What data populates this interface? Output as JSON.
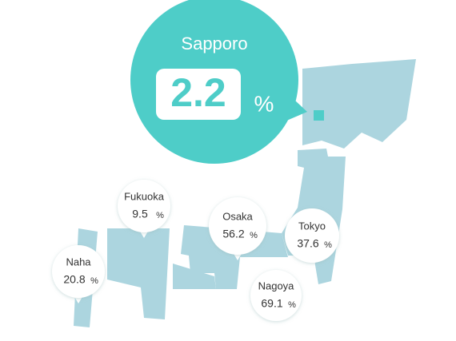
{
  "headline": {
    "city": "Sapporo",
    "value": 2.2
  },
  "unit": "%",
  "callouts": [
    {
      "city": "Fukuoka",
      "value": 9.5
    },
    {
      "city": "Osaka",
      "value": 56.2
    },
    {
      "city": "Tokyo",
      "value": 37.6
    },
    {
      "city": "Naha",
      "value": 20.8
    },
    {
      "city": "Nagoya",
      "value": 69.1
    }
  ]
}
